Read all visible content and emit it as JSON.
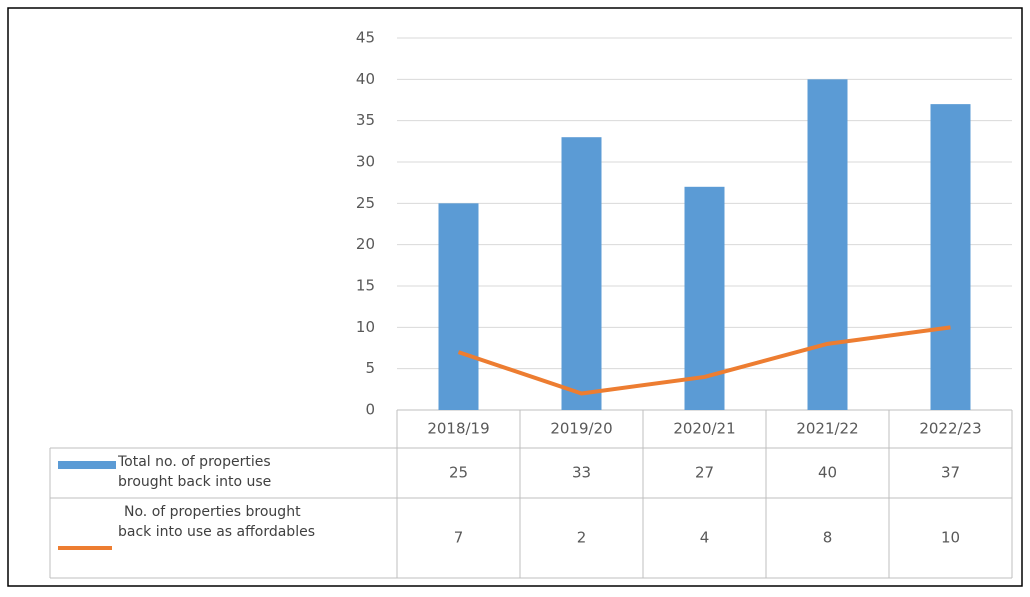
{
  "chart_data": {
    "type": "bar-line",
    "categories": [
      "2018/19",
      "2019/20",
      "2020/21",
      "2021/22",
      "2022/23"
    ],
    "series": [
      {
        "name": "Total no. of properties brought back into use",
        "type": "bar",
        "color": "#5b9bd5",
        "values": [
          25,
          33,
          27,
          40,
          37
        ]
      },
      {
        "name": "No. of properties brought back into use as affordables",
        "type": "line",
        "color": "#ed7d31",
        "values": [
          7,
          2,
          4,
          8,
          10
        ]
      }
    ],
    "ylim": [
      0,
      45
    ],
    "yticks": [
      0,
      5,
      10,
      15,
      20,
      25,
      30,
      35,
      40,
      45
    ],
    "grid": true,
    "data_table": true
  }
}
